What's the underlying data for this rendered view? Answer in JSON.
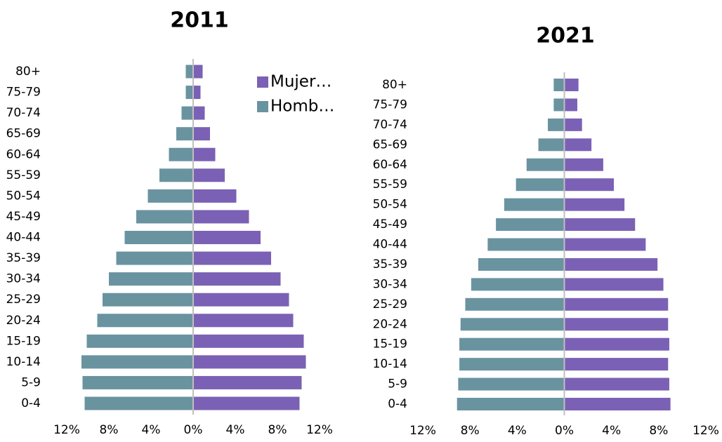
{
  "chart_data": [
    {
      "type": "bar",
      "title": "2011",
      "categories": [
        "0-4",
        "5-9",
        "10-14",
        "15-19",
        "20-24",
        "25-29",
        "30-34",
        "35-39",
        "40-44",
        "45-49",
        "50-54",
        "55-59",
        "60-64",
        "65-69",
        "70-74",
        "75-79",
        "80+"
      ],
      "series": [
        {
          "name": "Mujer…",
          "color": "#7b61b5",
          "values": [
            10.1,
            10.3,
            10.7,
            10.5,
            9.5,
            9.1,
            8.3,
            7.4,
            6.4,
            5.3,
            4.1,
            3.0,
            2.1,
            1.6,
            1.1,
            0.7,
            0.9
          ]
        },
        {
          "name": "Homb…",
          "color": "#6a93a0",
          "values": [
            -10.3,
            -10.5,
            -10.6,
            -10.1,
            -9.1,
            -8.6,
            -8.0,
            -7.3,
            -6.5,
            -5.4,
            -4.3,
            -3.2,
            -2.3,
            -1.6,
            -1.1,
            -0.7,
            -0.7
          ]
        }
      ],
      "xlim": [
        -12,
        12
      ],
      "xticks": [
        {
          "value": -12,
          "label": "12%"
        },
        {
          "value": -8,
          "label": "8%"
        },
        {
          "value": -4,
          "label": "4%"
        },
        {
          "value": 0,
          "label": "0%"
        },
        {
          "value": 4,
          "label": "4%"
        },
        {
          "value": 8,
          "label": "8%"
        },
        {
          "value": 12,
          "label": "12%"
        }
      ]
    },
    {
      "type": "bar",
      "title": "2021",
      "categories": [
        "0-4",
        "5-9",
        "10-14",
        "15-19",
        "20-24",
        "25-29",
        "30-34",
        "35-39",
        "40-44",
        "45-49",
        "50-54",
        "55-59",
        "60-64",
        "65-69",
        "70-74",
        "75-79",
        "80+"
      ],
      "series": [
        {
          "color": "#7b61b5",
          "values": [
            9.0,
            8.9,
            8.8,
            8.9,
            8.8,
            8.8,
            8.4,
            7.9,
            6.9,
            6.0,
            5.1,
            4.2,
            3.3,
            2.3,
            1.5,
            1.1,
            1.2
          ]
        },
        {
          "color": "#6a93a0",
          "values": [
            -9.1,
            -9.0,
            -8.9,
            -8.9,
            -8.8,
            -8.4,
            -7.9,
            -7.3,
            -6.5,
            -5.8,
            -5.1,
            -4.1,
            -3.2,
            -2.2,
            -1.4,
            -0.9,
            -0.9
          ]
        }
      ],
      "xlim": [
        -12,
        12
      ],
      "xticks": [
        {
          "value": -12,
          "label": "12%"
        },
        {
          "value": -8,
          "label": "8%"
        },
        {
          "value": -4,
          "label": "4%"
        },
        {
          "value": 0,
          "label": "0%"
        },
        {
          "value": 4,
          "label": "4%"
        },
        {
          "value": 8,
          "label": "8%"
        },
        {
          "value": 12,
          "label": "12%"
        }
      ]
    }
  ]
}
